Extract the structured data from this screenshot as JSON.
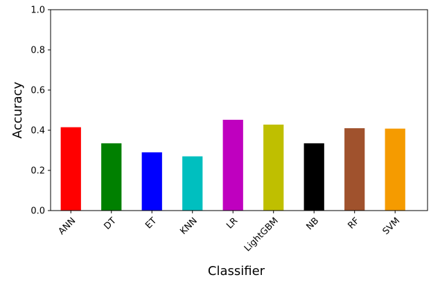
{
  "chart_data": {
    "type": "bar",
    "title": "",
    "xlabel": "Classifier",
    "ylabel": "Accuracy",
    "ylim": [
      0.0,
      1.0
    ],
    "yticks": [
      "0.0",
      "0.2",
      "0.4",
      "0.6",
      "0.8",
      "1.0"
    ],
    "categories": [
      "ANN",
      "DT",
      "ET",
      "KNN",
      "LR",
      "LightGBM",
      "NB",
      "RF",
      "SVM"
    ],
    "values": [
      0.415,
      0.335,
      0.29,
      0.27,
      0.452,
      0.428,
      0.335,
      0.41,
      0.408
    ],
    "colors": [
      "#ff0000",
      "#008000",
      "#0000ff",
      "#00bfbf",
      "#bf00bf",
      "#bfbf00",
      "#000000",
      "#a0522d",
      "#f59b00"
    ],
    "grid": false,
    "legend": "none"
  }
}
